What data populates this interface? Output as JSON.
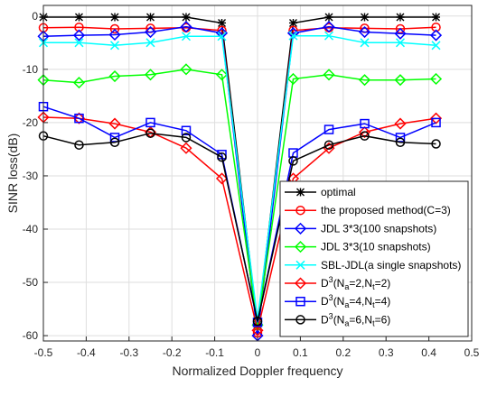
{
  "chart_data": {
    "type": "line",
    "title": "",
    "xlabel": "Normalized Doppler frequency",
    "ylabel": "SINR loss(dB)",
    "xlim": [
      -0.5,
      0.5
    ],
    "ylim": [
      -61,
      2
    ],
    "xticks": [
      "-0.5",
      "-0.4",
      "-0.3",
      "-0.2",
      "-0.1",
      "0",
      "0.1",
      "0.2",
      "0.3",
      "0.4",
      "0.5"
    ],
    "yticks": [
      "0",
      "-10",
      "-20",
      "-30",
      "-40",
      "-50",
      "-60"
    ],
    "grid": true,
    "legend_position": "bottom-right",
    "x": [
      -0.5,
      -0.4167,
      -0.3333,
      -0.25,
      -0.1667,
      -0.0833,
      0,
      0.0833,
      0.1667,
      0.25,
      0.3333,
      0.4167
    ],
    "series": [
      {
        "name": "optimal",
        "marker": "star",
        "color": "#000000",
        "values": [
          -0.2,
          -0.2,
          -0.2,
          -0.2,
          -0.2,
          -1.3,
          -58.0,
          -1.3,
          -0.2,
          -0.2,
          -0.2,
          -0.2
        ]
      },
      {
        "name": "the proposed method(C=3)",
        "marker": "circle",
        "color": "#ff0000",
        "values": [
          -2.2,
          -2.1,
          -2.4,
          -2.3,
          -2.2,
          -2.7,
          -59.5,
          -2.7,
          -2.2,
          -2.3,
          -2.4,
          -2.1
        ]
      },
      {
        "name": "JDL 3*3(100 snapshots)",
        "marker": "diamond",
        "color": "#0000ff",
        "values": [
          -3.8,
          -3.6,
          -3.5,
          -3.0,
          -2.0,
          -3.2,
          -60.0,
          -3.2,
          -2.0,
          -3.0,
          -3.3,
          -3.6
        ]
      },
      {
        "name": "JDL 3*3(10 snapshots)",
        "marker": "diamond",
        "color": "#00ff00",
        "values": [
          -12.0,
          -12.5,
          -11.3,
          -11.0,
          -10.0,
          -11.0,
          -58.0,
          -11.8,
          -11.0,
          -12.0,
          -12.0,
          -11.8
        ]
      },
      {
        "name": "SBL-JDL(a single snapshots)",
        "marker": "x",
        "color": "#00ffff",
        "values": [
          -5.0,
          -5.0,
          -5.5,
          -5.0,
          -3.8,
          -3.8,
          -57.0,
          -3.7,
          -3.7,
          -5.0,
          -5.0,
          -5.5
        ]
      },
      {
        "name": "D3(Na=2,Nt=2)",
        "marker": "diamond",
        "color": "#ff0000",
        "values": [
          -19.0,
          -19.2,
          -20.2,
          -21.8,
          -24.8,
          -30.5,
          -59.0,
          -30.5,
          -24.8,
          -21.8,
          -20.2,
          -19.2
        ]
      },
      {
        "name": "D3(Na=4,Nt=4)",
        "marker": "square",
        "color": "#0000ff",
        "values": [
          -17.0,
          -19.2,
          -22.8,
          -20.0,
          -21.5,
          -26.0,
          -57.5,
          -25.7,
          -21.3,
          -20.2,
          -22.8,
          -20.0
        ]
      },
      {
        "name": "D3(Na=6,Nt=6)",
        "marker": "circle",
        "color": "#000000",
        "values": [
          -22.5,
          -24.2,
          -23.7,
          -22.0,
          -22.8,
          -26.5,
          -57.3,
          -27.2,
          -24.2,
          -22.5,
          -23.7,
          -24.0
        ]
      }
    ]
  },
  "legend": {
    "items": [
      {
        "text": "optimal"
      },
      {
        "text": "the proposed method(C=3)"
      },
      {
        "text": "JDL 3*3(100 snapshots)"
      },
      {
        "text": "JDL 3*3(10 snapshots)"
      },
      {
        "text": "SBL-JDL(a single snapshots)"
      },
      {
        "pre": "D",
        "sup": "3",
        "mid1": "(N",
        "sub1": "a",
        "mid2": "=2,N",
        "sub2": "t",
        "post": "=2)"
      },
      {
        "pre": "D",
        "sup": "3",
        "mid1": "(N",
        "sub1": "a",
        "mid2": "=4,N",
        "sub2": "t",
        "post": "=4)"
      },
      {
        "pre": "D",
        "sup": "3",
        "mid1": "(N",
        "sub1": "a",
        "mid2": "=6,N",
        "sub2": "t",
        "post": "=6)"
      }
    ]
  }
}
